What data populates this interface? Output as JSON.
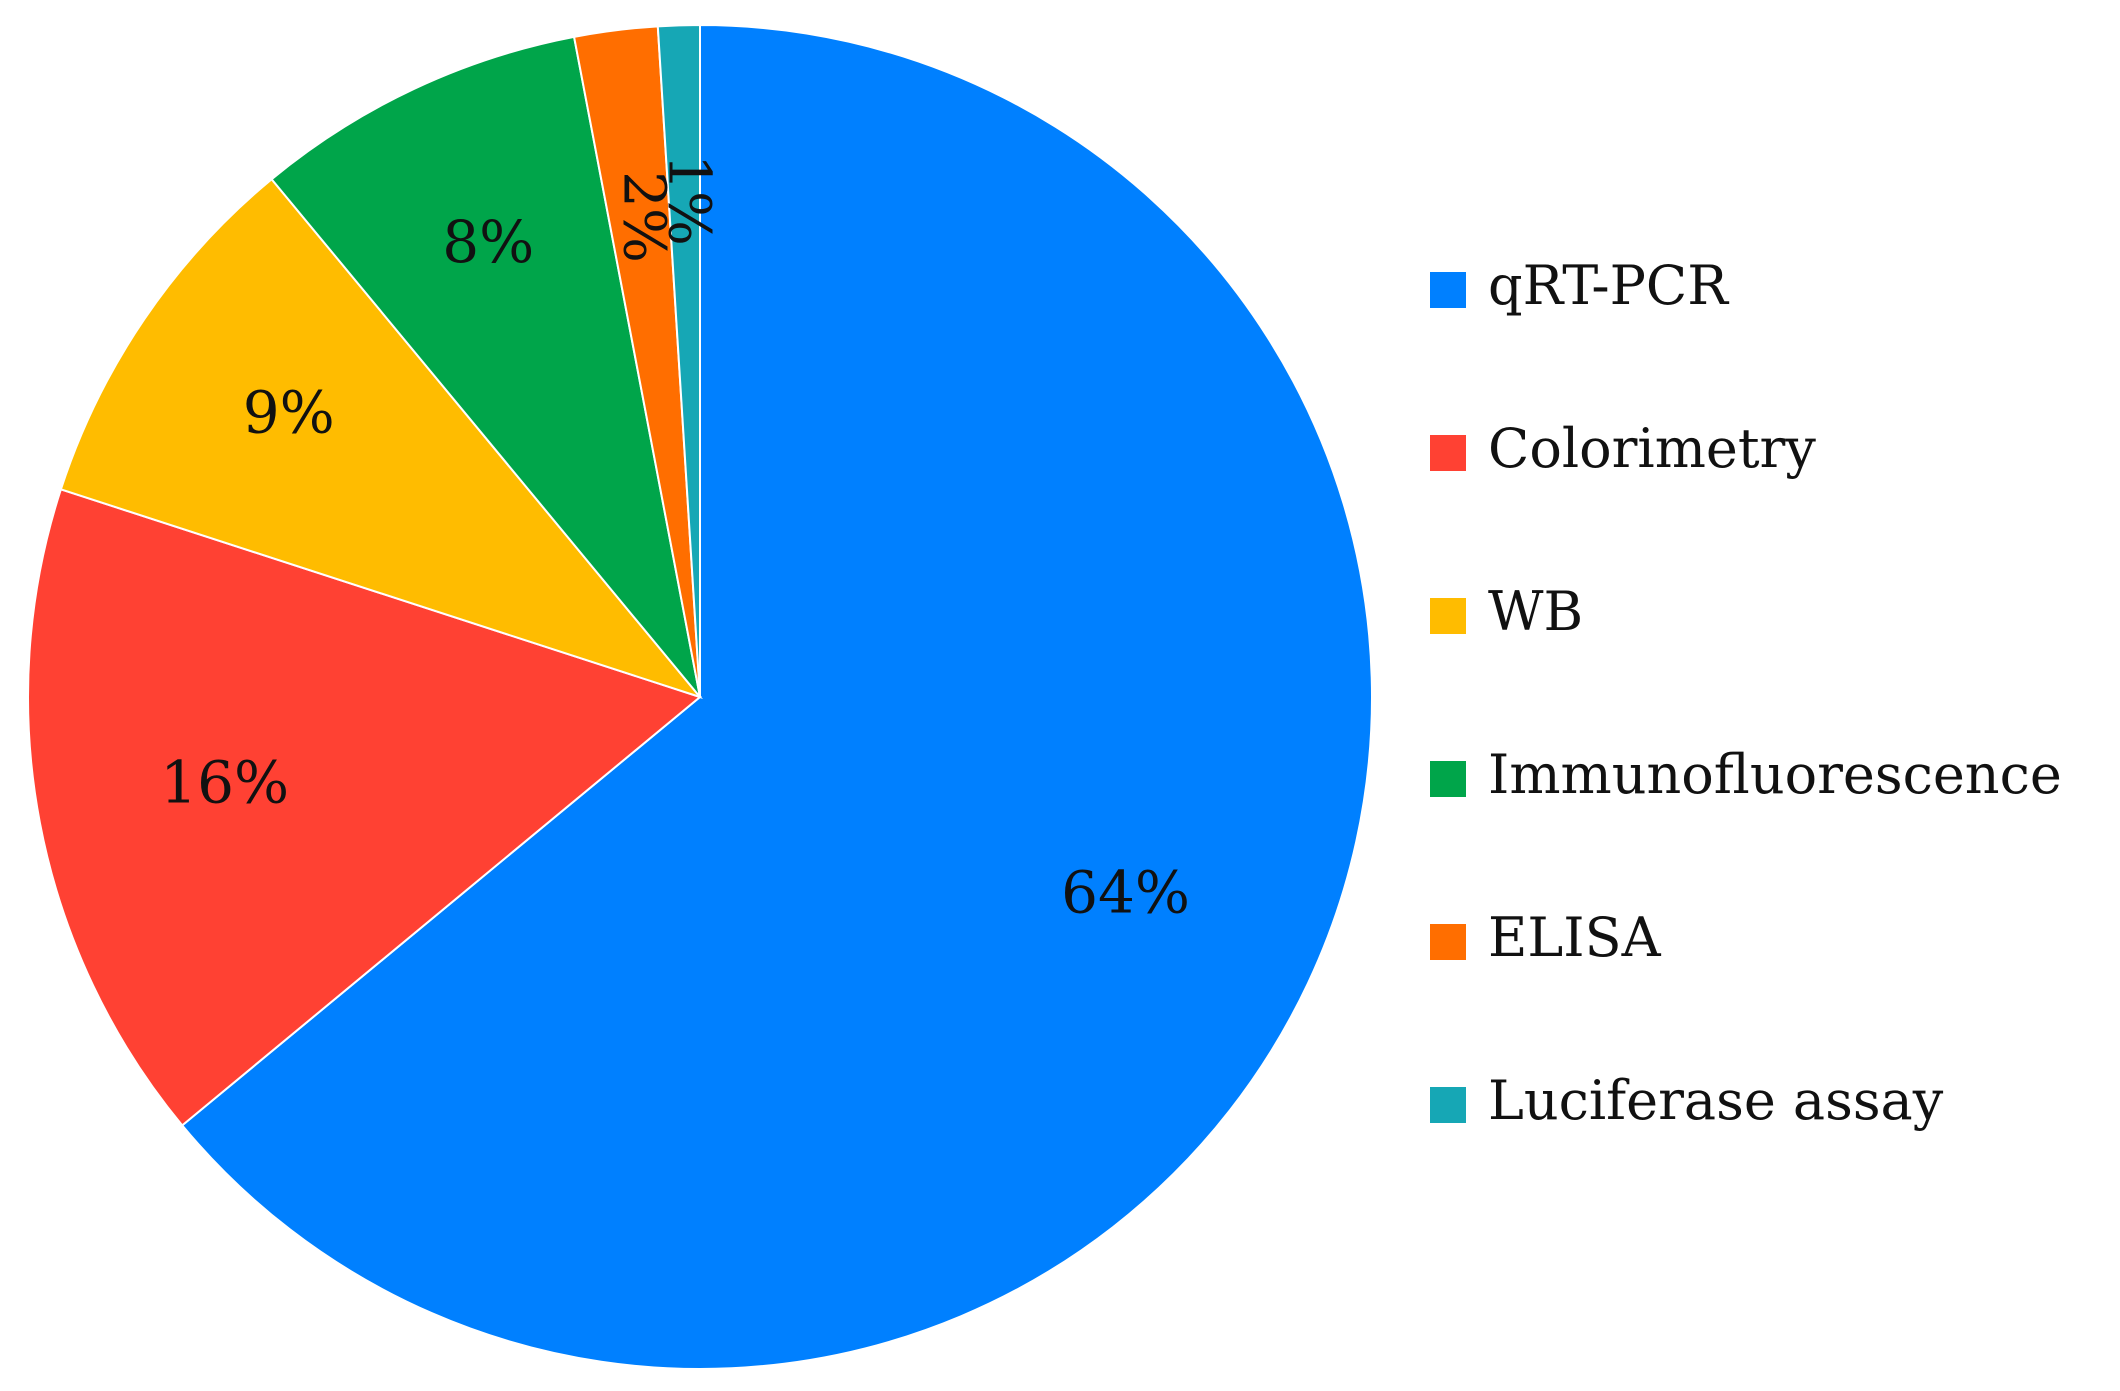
{
  "chart_data": {
    "type": "pie",
    "title": "",
    "start_angle_deg": 0,
    "direction": "clockwise",
    "slices": [
      {
        "label": "qRT-PCR",
        "value": 64,
        "value_label": "64%",
        "color": "#0080ff"
      },
      {
        "label": "Colorimetry",
        "value": 16,
        "value_label": "16%",
        "color": "#ff4133"
      },
      {
        "label": "WB",
        "value": 9,
        "value_label": "9%",
        "color": "#ffbc00"
      },
      {
        "label": "Immunofluorescence",
        "value": 8,
        "value_label": "8%",
        "color": "#00a54a"
      },
      {
        "label": "ELISA",
        "value": 2,
        "value_label": "2%",
        "color": "#ff6e00"
      },
      {
        "label": "Luciferase assay",
        "value": 1,
        "value_label": "1%",
        "color": "#16a7b5"
      }
    ],
    "legend_position": "right"
  }
}
